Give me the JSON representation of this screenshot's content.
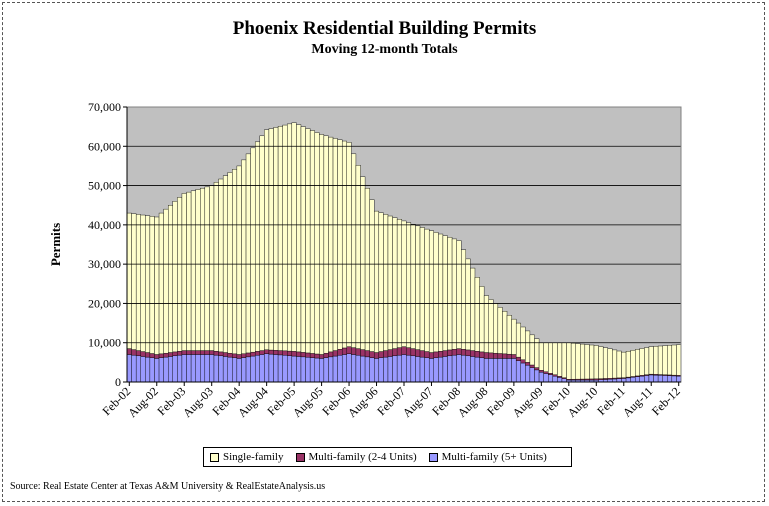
{
  "chart_data": {
    "type": "area",
    "title": "Phoenix Residential Building Permits",
    "subtitle": "Moving 12-month Totals",
    "ylabel": "Permits",
    "xlabel": "",
    "ylim": [
      0,
      70000
    ],
    "yticks": [
      "0",
      "10,000",
      "20,000",
      "30,000",
      "40,000",
      "50,000",
      "60,000",
      "70,000"
    ],
    "xticks": [
      "Feb-02",
      "Aug-02",
      "Feb-03",
      "Aug-03",
      "Feb-04",
      "Aug-04",
      "Feb-05",
      "Aug-05",
      "Feb-06",
      "Aug-06",
      "Feb-07",
      "Aug-07",
      "Feb-08",
      "Aug-08",
      "Feb-09",
      "Aug-09",
      "Feb-10",
      "Aug-10",
      "Feb-11",
      "Aug-11",
      "Feb-12"
    ],
    "stacked": true,
    "grid": true,
    "legend_position": "bottom",
    "series": [
      {
        "name": "Multi-family (5+ Units)",
        "color": "#9999ff",
        "anchors": [
          7000,
          6000,
          7000,
          7000,
          6000,
          7200,
          6600,
          6000,
          7200,
          6000,
          7000,
          6000,
          7000,
          6000,
          6000,
          2500,
          500,
          500,
          900,
          1800,
          1500
        ]
      },
      {
        "name": "Multi-family (2-4 Units)",
        "color": "#993366",
        "anchors": [
          1500,
          1000,
          1000,
          1000,
          1000,
          1000,
          1200,
          1000,
          1800,
          1500,
          2000,
          1500,
          1500,
          1500,
          1000,
          500,
          200,
          300,
          200,
          200,
          200
        ]
      },
      {
        "name": "Single-family",
        "color": "#ffffcc",
        "anchors": [
          34500,
          35000,
          40000,
          42000,
          48000,
          56000,
          58200,
          56000,
          52000,
          36000,
          32000,
          31000,
          27500,
          14500,
          9000,
          7000,
          9300,
          8500,
          6500,
          7000,
          7800
        ]
      }
    ],
    "note": "anchors are monthly 12-month totals sampled every 6 months from Feb-02 to Feb-12"
  },
  "source": "Source: Real Estate Center at Texas A&M University & RealEstateAnalysis.us"
}
